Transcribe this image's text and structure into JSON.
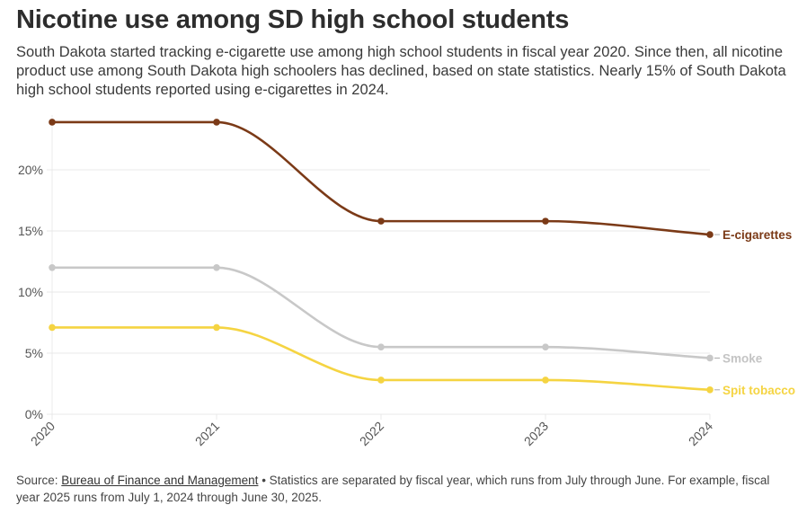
{
  "header": {
    "title": "Nicotine use among SD high school students",
    "subtitle": "South Dakota started tracking e-cigarette use among high school students in fiscal year 2020. Since then, all nicotine product use among South Dakota high schoolers has declined, based on state statistics. Nearly 15% of South Dakota high school students reported using e-cigarettes in 2024."
  },
  "footer": {
    "source_prefix": "Source: ",
    "source_link": "Bureau of Finance and Management",
    "note": " • Statistics are separated by fiscal year, which runs from July through June. For example, fiscal year 2025 runs from July 1, 2024 through June 30, 2025."
  },
  "chart_data": {
    "type": "line",
    "title": "Nicotine use among SD high school students",
    "xlabel": "",
    "ylabel": "",
    "x": [
      "2020",
      "2021",
      "2022",
      "2023",
      "2024"
    ],
    "ylim": [
      0,
      24
    ],
    "yticks": [
      0,
      5,
      10,
      15,
      20
    ],
    "ytick_labels": [
      "0%",
      "5%",
      "10%",
      "15%",
      "20%"
    ],
    "grid": true,
    "legend": "direct labels at right end of lines",
    "series": [
      {
        "name": "E-cigarettes",
        "color": "#7b3a17",
        "values": [
          23.9,
          23.9,
          15.8,
          15.8,
          14.7
        ]
      },
      {
        "name": "Smoke",
        "color": "#c8c8c8",
        "values": [
          12.0,
          12.0,
          5.5,
          5.5,
          4.6
        ]
      },
      {
        "name": "Spit tobacco",
        "color": "#f5d442",
        "values": [
          7.1,
          7.1,
          2.8,
          2.8,
          2.0
        ]
      }
    ]
  }
}
